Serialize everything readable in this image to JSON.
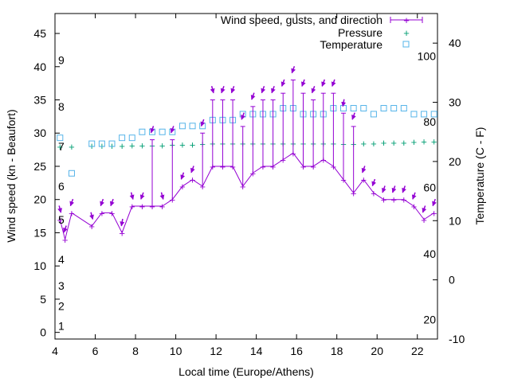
{
  "chart_data": {
    "type": "line",
    "xlabel": "Local time (Europe/Athens)",
    "ylabel": "Wind speed (kn - Beaufort)",
    "y2label": "Temperature (C - F)",
    "xlim": [
      4,
      23
    ],
    "ylim": [
      -1,
      48
    ],
    "y2lim": [
      -10,
      45
    ],
    "x_ticks": [
      4,
      6,
      8,
      10,
      12,
      14,
      16,
      18,
      20,
      22
    ],
    "y_ticks": [
      0,
      5,
      10,
      15,
      20,
      25,
      30,
      35,
      40,
      45
    ],
    "y2_ticks": [
      -10,
      0,
      10,
      20,
      30,
      40
    ],
    "beaufort_labels": [
      {
        "label": "1",
        "kn": 1
      },
      {
        "label": "2",
        "kn": 4
      },
      {
        "label": "3",
        "kn": 7
      },
      {
        "label": "4",
        "kn": 11
      },
      {
        "label": "5",
        "kn": 17
      },
      {
        "label": "6",
        "kn": 22
      },
      {
        "label": "7",
        "kn": 28
      },
      {
        "label": "8",
        "kn": 34
      },
      {
        "label": "9",
        "kn": 41
      }
    ],
    "fahrenheit_labels": [
      {
        "label": "20",
        "celsius": -6.7
      },
      {
        "label": "40",
        "celsius": 4.4
      },
      {
        "label": "60",
        "celsius": 15.6
      },
      {
        "label": "80",
        "celsius": 26.7
      },
      {
        "label": "100",
        "celsius": 37.8
      }
    ],
    "grid": false,
    "legend_position": "top-right",
    "colors": {
      "wind": "#9400d3",
      "pressure": "#009e73",
      "temperature": "#56b4e9"
    },
    "series": [
      {
        "name": "Wind speed, gusts, and direction",
        "x": [
          4.25,
          4.5,
          4.83,
          5.83,
          6.33,
          6.83,
          7.33,
          7.83,
          8.33,
          8.83,
          9.33,
          9.83,
          10.33,
          10.83,
          11.33,
          11.83,
          12.33,
          12.83,
          13.33,
          13.83,
          14.33,
          14.83,
          15.33,
          15.83,
          16.33,
          16.83,
          17.33,
          17.83,
          18.33,
          18.83,
          19.33,
          19.83,
          20.33,
          20.83,
          21.33,
          21.83,
          22.33,
          22.83
        ],
        "speed": [
          17,
          14,
          18,
          16,
          18,
          18,
          15,
          19,
          19,
          19,
          19,
          20,
          22,
          23,
          22,
          25,
          25,
          25,
          22,
          24,
          25,
          25,
          26,
          27,
          25,
          25,
          26,
          25,
          23,
          21,
          23,
          21,
          20,
          20,
          20,
          19,
          17,
          18
        ],
        "gust": [
          17,
          14,
          18,
          16,
          18,
          18,
          15,
          19,
          19,
          29,
          19,
          29,
          22,
          23,
          30,
          35,
          35,
          35,
          31,
          34,
          35,
          35,
          36,
          38,
          36,
          35,
          36,
          36,
          33,
          31,
          23,
          21,
          20,
          20,
          20,
          19,
          17,
          18
        ],
        "direction_deg": [
          345,
          20,
          20,
          345,
          20,
          20,
          10,
          345,
          20,
          20,
          345,
          20,
          20,
          20,
          20,
          345,
          20,
          20,
          20,
          20,
          20,
          20,
          20,
          20,
          20,
          20,
          20,
          20,
          10,
          20,
          20,
          20,
          20,
          20,
          20,
          20,
          20,
          20
        ]
      },
      {
        "name": "Pressure",
        "x": [
          4.25,
          4.83,
          5.83,
          6.33,
          6.83,
          7.33,
          7.83,
          8.33,
          8.83,
          9.33,
          9.83,
          10.33,
          10.83,
          11.33,
          11.83,
          12.33,
          12.83,
          13.33,
          13.83,
          14.33,
          14.83,
          15.33,
          15.83,
          16.33,
          16.83,
          17.33,
          17.83,
          18.33,
          18.83,
          19.33,
          19.83,
          20.33,
          20.83,
          21.33,
          21.83,
          22.33,
          22.83
        ],
        "values": [
          28,
          28,
          28.1,
          28.1,
          28.1,
          28.1,
          28.2,
          28.2,
          28.2,
          28.2,
          28.3,
          28.3,
          28.3,
          28.4,
          28.5,
          28.5,
          28.5,
          28.5,
          28.5,
          28.5,
          28.5,
          28.5,
          28.5,
          28.5,
          28.5,
          28.5,
          28.5,
          28.4,
          28.4,
          28.5,
          28.5,
          28.6,
          28.6,
          28.6,
          28.7,
          28.8,
          28.8
        ]
      },
      {
        "name": "Temperature",
        "x": [
          4.25,
          4.83,
          5.83,
          6.33,
          6.83,
          7.33,
          7.83,
          8.33,
          8.83,
          9.33,
          9.83,
          10.33,
          10.83,
          11.33,
          11.83,
          12.33,
          12.83,
          13.33,
          13.83,
          14.33,
          14.83,
          15.33,
          15.83,
          16.33,
          16.83,
          17.33,
          17.83,
          18.33,
          18.83,
          19.33,
          19.83,
          20.33,
          20.83,
          21.33,
          21.83,
          22.33,
          22.83
        ],
        "values": [
          24,
          18,
          23,
          23,
          23,
          24,
          24,
          25,
          25,
          25,
          25,
          26,
          26,
          26,
          27,
          27,
          27,
          28,
          28,
          28,
          28,
          29,
          29,
          28,
          28,
          28,
          29,
          29,
          29,
          29,
          28,
          29,
          29,
          29,
          28,
          28,
          28
        ]
      }
    ]
  }
}
